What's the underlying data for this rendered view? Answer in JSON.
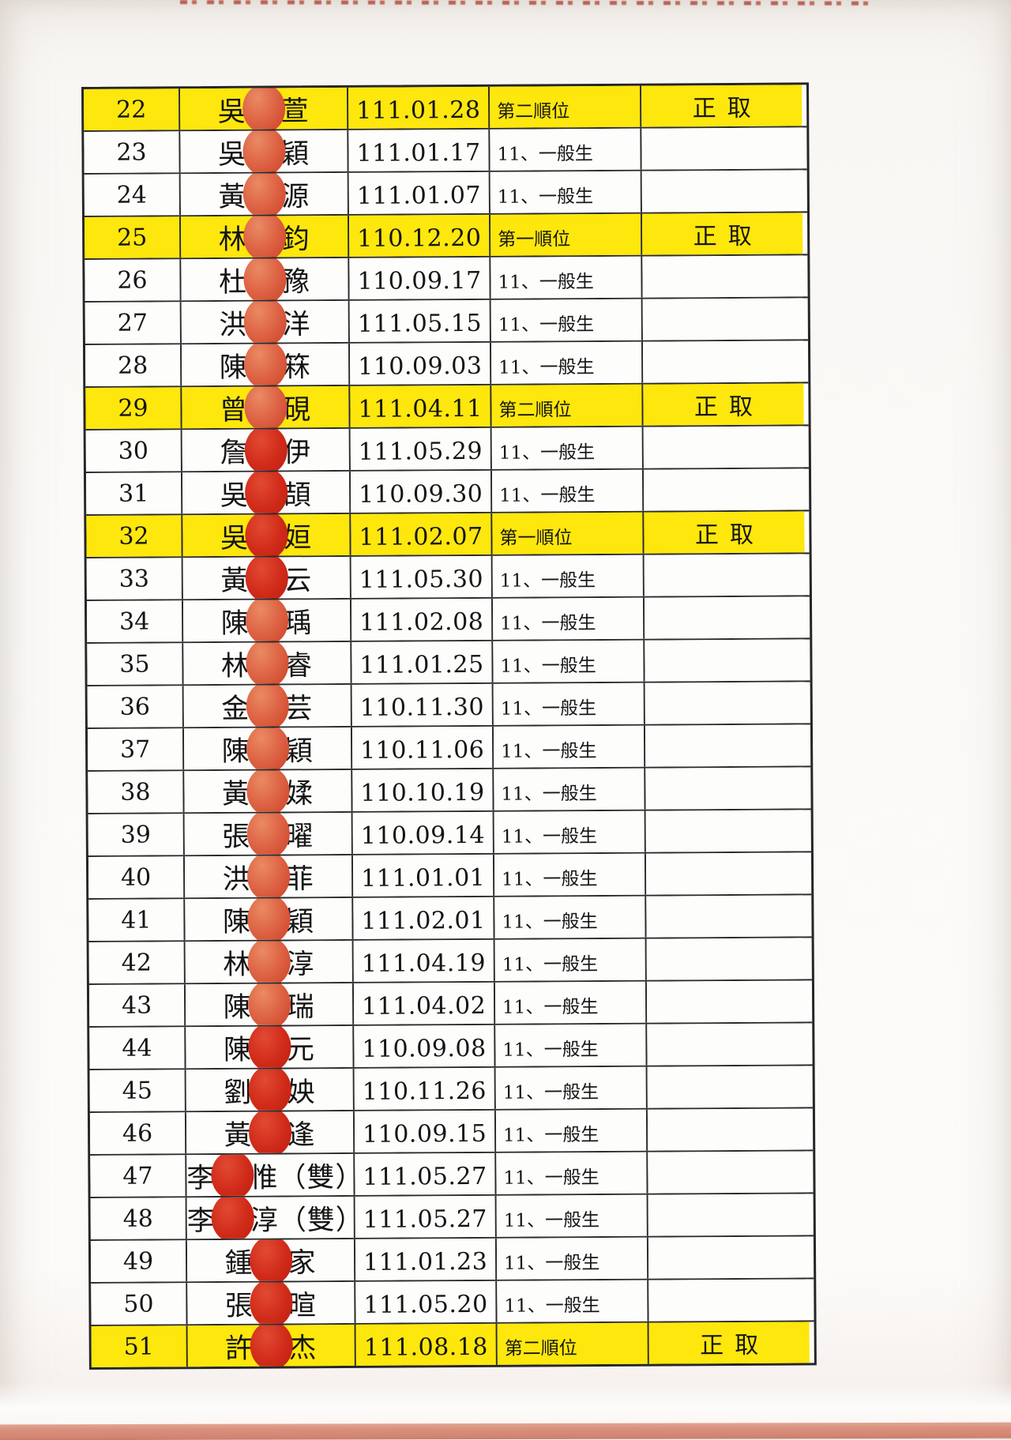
{
  "colors": {
    "highlight_yellow": "#fde70c",
    "stamp_red": "#d02a19",
    "stamp_orange": "#dd6243",
    "bottom_strip_salmon": "#d8907d",
    "table_line": "#2a2a2a"
  },
  "labels": {
    "accepted": "正取",
    "priority_1": "第一順位",
    "priority_2": "第二順位",
    "general": "11、一般生"
  },
  "table": {
    "rows": [
      {
        "no": "22",
        "surname": "吳",
        "given": "萱",
        "date": "111.01.28",
        "category": "第二順位",
        "status": "正取",
        "highlight": true,
        "stamp": "orange"
      },
      {
        "no": "23",
        "surname": "吳",
        "given": "穎",
        "date": "111.01.17",
        "category": "11、一般生",
        "status": "",
        "highlight": false,
        "stamp": "orange"
      },
      {
        "no": "24",
        "surname": "黃",
        "given": "源",
        "date": "111.01.07",
        "category": "11、一般生",
        "status": "",
        "highlight": false,
        "stamp": "orange"
      },
      {
        "no": "25",
        "surname": "林",
        "given": "鈞",
        "date": "110.12.20",
        "category": "第一順位",
        "status": "正取",
        "highlight": true,
        "stamp": "orange"
      },
      {
        "no": "26",
        "surname": "杜",
        "given": "豫",
        "date": "110.09.17",
        "category": "11、一般生",
        "status": "",
        "highlight": false,
        "stamp": "orange"
      },
      {
        "no": "27",
        "surname": "洪",
        "given": "洋",
        "date": "111.05.15",
        "category": "11、一般生",
        "status": "",
        "highlight": false,
        "stamp": "orange"
      },
      {
        "no": "28",
        "surname": "陳",
        "given": "箖",
        "date": "110.09.03",
        "category": "11、一般生",
        "status": "",
        "highlight": false,
        "stamp": "orange"
      },
      {
        "no": "29",
        "surname": "曾",
        "given": "硯",
        "date": "111.04.11",
        "category": "第二順位",
        "status": "正取",
        "highlight": true,
        "stamp": "orange"
      },
      {
        "no": "30",
        "surname": "詹",
        "given": "伊",
        "date": "111.05.29",
        "category": "11、一般生",
        "status": "",
        "highlight": false,
        "stamp": "red"
      },
      {
        "no": "31",
        "surname": "吳",
        "given": "頡",
        "date": "110.09.30",
        "category": "11、一般生",
        "status": "",
        "highlight": false,
        "stamp": "red"
      },
      {
        "no": "32",
        "surname": "吳",
        "given": "姮",
        "date": "111.02.07",
        "category": "第一順位",
        "status": "正取",
        "highlight": true,
        "stamp": "red"
      },
      {
        "no": "33",
        "surname": "黃",
        "given": "云",
        "date": "111.05.30",
        "category": "11、一般生",
        "status": "",
        "highlight": false,
        "stamp": "red"
      },
      {
        "no": "34",
        "surname": "陳",
        "given": "瑀",
        "date": "111.02.08",
        "category": "11、一般生",
        "status": "",
        "highlight": false,
        "stamp": "orange"
      },
      {
        "no": "35",
        "surname": "林",
        "given": "睿",
        "date": "111.01.25",
        "category": "11、一般生",
        "status": "",
        "highlight": false,
        "stamp": "orange"
      },
      {
        "no": "36",
        "surname": "金",
        "given": "芸",
        "date": "110.11.30",
        "category": "11、一般生",
        "status": "",
        "highlight": false,
        "stamp": "orange"
      },
      {
        "no": "37",
        "surname": "陳",
        "given": "穎",
        "date": "110.11.06",
        "category": "11、一般生",
        "status": "",
        "highlight": false,
        "stamp": "orange"
      },
      {
        "no": "38",
        "surname": "黃",
        "given": "媃",
        "date": "110.10.19",
        "category": "11、一般生",
        "status": "",
        "highlight": false,
        "stamp": "orange"
      },
      {
        "no": "39",
        "surname": "張",
        "given": "曜",
        "date": "110.09.14",
        "category": "11、一般生",
        "status": "",
        "highlight": false,
        "stamp": "orange"
      },
      {
        "no": "40",
        "surname": "洪",
        "given": "菲",
        "date": "111.01.01",
        "category": "11、一般生",
        "status": "",
        "highlight": false,
        "stamp": "orange"
      },
      {
        "no": "41",
        "surname": "陳",
        "given": "穎",
        "date": "111.02.01",
        "category": "11、一般生",
        "status": "",
        "highlight": false,
        "stamp": "orange"
      },
      {
        "no": "42",
        "surname": "林",
        "given": "淳",
        "date": "111.04.19",
        "category": "11、一般生",
        "status": "",
        "highlight": false,
        "stamp": "orange"
      },
      {
        "no": "43",
        "surname": "陳",
        "given": "瑞",
        "date": "111.04.02",
        "category": "11、一般生",
        "status": "",
        "highlight": false,
        "stamp": "orange"
      },
      {
        "no": "44",
        "surname": "陳",
        "given": "元",
        "date": "110.09.08",
        "category": "11、一般生",
        "status": "",
        "highlight": false,
        "stamp": "red"
      },
      {
        "no": "45",
        "surname": "劉",
        "given": "姎",
        "date": "110.11.26",
        "category": "11、一般生",
        "status": "",
        "highlight": false,
        "stamp": "red"
      },
      {
        "no": "46",
        "surname": "黃",
        "given": "逢",
        "date": "110.09.15",
        "category": "11、一般生",
        "status": "",
        "highlight": false,
        "stamp": "red"
      },
      {
        "no": "47",
        "surname": "李",
        "given": "惟（雙）",
        "date": "111.05.27",
        "category": "11、一般生",
        "status": "",
        "highlight": false,
        "stamp": "red"
      },
      {
        "no": "48",
        "surname": "李",
        "given": "淳（雙）",
        "date": "111.05.27",
        "category": "11、一般生",
        "status": "",
        "highlight": false,
        "stamp": "red"
      },
      {
        "no": "49",
        "surname": "鍾",
        "given": "家",
        "date": "111.01.23",
        "category": "11、一般生",
        "status": "",
        "highlight": false,
        "stamp": "red"
      },
      {
        "no": "50",
        "surname": "張",
        "given": "暄",
        "date": "111.05.20",
        "category": "11、一般生",
        "status": "",
        "highlight": false,
        "stamp": "red"
      },
      {
        "no": "51",
        "surname": "許",
        "given": "杰",
        "date": "111.08.18",
        "category": "第二順位",
        "status": "正取",
        "highlight": true,
        "stamp": "red"
      }
    ]
  }
}
